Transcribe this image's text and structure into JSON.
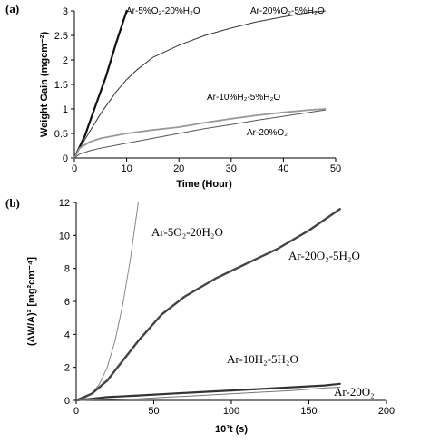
{
  "chart_data": [
    {
      "type": "line",
      "panel_label": "(a)",
      "xlabel": "Time (Hour)",
      "ylabel": "Weight Gain (mgcm⁻²)",
      "xlim": [
        0,
        50
      ],
      "ylim": [
        0,
        3
      ],
      "xticks": [
        "0",
        "10",
        "20",
        "30",
        "40",
        "50"
      ],
      "yticks": [
        "0",
        "0.5",
        "1",
        "1.5",
        "2",
        "2.5",
        "3"
      ],
      "grid": false,
      "legend": "none (series labeled directly on plot)",
      "series": [
        {
          "name": "Ar-5%O₂-20%H₂O",
          "color": "#111111",
          "x": [
            0,
            2,
            4,
            6,
            8,
            10
          ],
          "y": [
            0,
            0.45,
            1.05,
            1.65,
            2.35,
            3.0
          ]
        },
        {
          "name": "Ar-20%O₂-5%H₂O",
          "color": "#333333",
          "x": [
            0,
            1,
            3,
            5,
            8,
            10,
            12,
            15,
            20,
            25,
            30,
            35,
            40,
            45,
            48
          ],
          "y": [
            0,
            0.2,
            0.55,
            0.9,
            1.35,
            1.6,
            1.8,
            2.05,
            2.3,
            2.5,
            2.65,
            2.78,
            2.88,
            2.97,
            3.0
          ]
        },
        {
          "name": "Ar-10%H₂-5%H₂O",
          "color": "#999999",
          "x": [
            0,
            1,
            3,
            5,
            10,
            15,
            20,
            25,
            30,
            35,
            40,
            45,
            48
          ],
          "y": [
            0,
            0.2,
            0.33,
            0.4,
            0.5,
            0.57,
            0.63,
            0.72,
            0.8,
            0.87,
            0.93,
            0.98,
            1.0
          ]
        },
        {
          "name": "Ar-20%O₂",
          "color": "#555555",
          "x": [
            0,
            1,
            3,
            5,
            10,
            15,
            20,
            25,
            30,
            35,
            40,
            45,
            48
          ],
          "y": [
            0,
            0.08,
            0.15,
            0.2,
            0.3,
            0.4,
            0.5,
            0.6,
            0.68,
            0.77,
            0.85,
            0.93,
            0.98
          ]
        }
      ],
      "annotations": [
        {
          "text": "Ar-5%O₂-20%H₂O",
          "series": "Ar-5%O₂-20%H₂O"
        },
        {
          "text": "Ar-20%O₂-5%H₂O",
          "series": "Ar-20%O₂-5%H₂O"
        },
        {
          "text": "Ar-10%H₂-5%H₂O",
          "series": "Ar-10%H₂-5%H₂O"
        },
        {
          "text": "Ar-20%O₂",
          "series": "Ar-20%O₂"
        }
      ]
    },
    {
      "type": "line",
      "panel_label": "(b)",
      "xlabel": "10³t (s)",
      "ylabel": "(ΔW/A)² [mg²cm⁻⁴]",
      "xlim": [
        0,
        200
      ],
      "ylim": [
        0,
        12
      ],
      "xticks": [
        "0",
        "50",
        "100",
        "150",
        "200"
      ],
      "yticks": [
        "0",
        "2",
        "4",
        "6",
        "8",
        "10",
        "12"
      ],
      "grid": false,
      "legend": "none (series labeled directly on plot)",
      "series": [
        {
          "name": "Ar-5O₂-20H₂O",
          "color": "#888888",
          "x": [
            0,
            5,
            10,
            15,
            20,
            25,
            30,
            35,
            40
          ],
          "y": [
            0,
            0.1,
            0.4,
            1.0,
            2.0,
            3.6,
            5.8,
            8.6,
            12.0
          ]
        },
        {
          "name": "Ar-20O₂-5H₂O",
          "color": "#444444",
          "x": [
            0,
            10,
            20,
            30,
            40,
            55,
            70,
            90,
            110,
            130,
            150,
            170
          ],
          "y": [
            0,
            0.4,
            1.2,
            2.4,
            3.6,
            5.2,
            6.3,
            7.4,
            8.3,
            9.2,
            10.3,
            11.6
          ]
        },
        {
          "name": "Ar-10H₂-5H₂O",
          "color": "#333333",
          "x": [
            0,
            10,
            20,
            40,
            60,
            80,
            100,
            120,
            140,
            160,
            170
          ],
          "y": [
            0,
            0.1,
            0.2,
            0.3,
            0.4,
            0.5,
            0.6,
            0.7,
            0.8,
            0.9,
            1.0
          ]
        },
        {
          "name": "Ar-20O₂",
          "color": "#777777",
          "x": [
            0,
            20,
            40,
            60,
            80,
            100,
            120,
            140,
            160,
            170
          ],
          "y": [
            0,
            0.05,
            0.1,
            0.2,
            0.3,
            0.4,
            0.5,
            0.6,
            0.75,
            0.8
          ]
        }
      ],
      "annotations": [
        {
          "text": "Ar-5O₂-20H₂O",
          "series": "Ar-5O₂-20H₂O"
        },
        {
          "text": "Ar-20O₂-5H₂O",
          "series": "Ar-20O₂-5H₂O"
        },
        {
          "text": "Ar-10H₂-5H₂O",
          "series": "Ar-10H₂-5H₂O"
        },
        {
          "text": "Ar-20O₂",
          "series": "Ar-20O₂"
        }
      ]
    }
  ]
}
